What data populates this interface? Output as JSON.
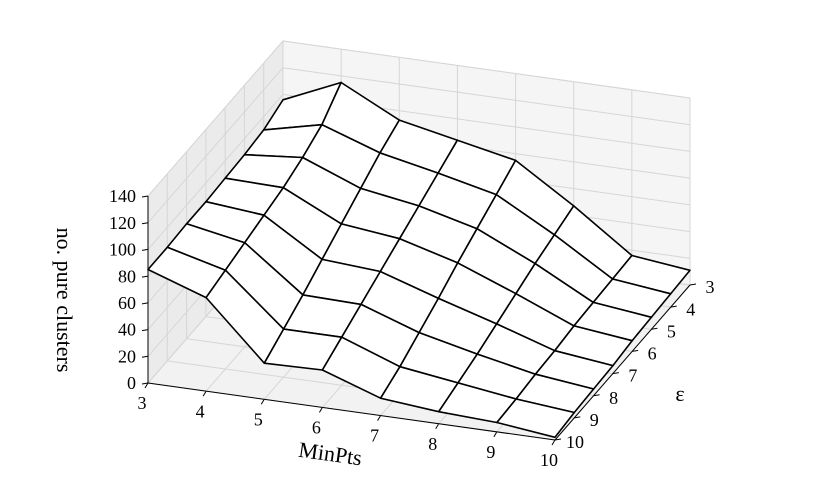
{
  "chart_data": {
    "type": "surface",
    "x_label": "MinPts",
    "y_label": "ε",
    "z_label": "no. pure clusters",
    "x": [
      3,
      4,
      5,
      6,
      7,
      8,
      9,
      10
    ],
    "y": [
      3,
      4,
      5,
      6,
      7,
      8,
      9,
      10
    ],
    "z": [
      [
        96,
        115,
        93,
        84,
        75,
        47,
        16,
        11
      ],
      [
        90,
        100,
        85,
        76,
        66,
        42,
        15,
        10
      ],
      [
        88,
        92,
        75,
        68,
        57,
        37,
        14,
        9
      ],
      [
        87,
        86,
        65,
        60,
        48,
        31,
        13,
        8
      ],
      [
        86,
        82,
        55,
        52,
        38,
        25,
        11,
        6
      ],
      [
        86,
        78,
        45,
        44,
        29,
        19,
        10,
        5
      ],
      [
        85,
        74,
        36,
        36,
        20,
        14,
        8,
        4
      ],
      [
        85,
        70,
        27,
        28,
        13,
        9,
        7,
        2
      ]
    ],
    "xlim": [
      3,
      10
    ],
    "xticks": [
      3,
      4,
      5,
      6,
      7,
      8,
      9,
      10
    ],
    "ylim": [
      3,
      10
    ],
    "yticks": [
      3,
      4,
      5,
      6,
      7,
      8,
      9,
      10
    ],
    "zlim": [
      0,
      140
    ],
    "zticks": [
      0,
      20,
      40,
      60,
      80,
      100,
      120,
      140
    ],
    "color": "#000000",
    "grid": true
  }
}
